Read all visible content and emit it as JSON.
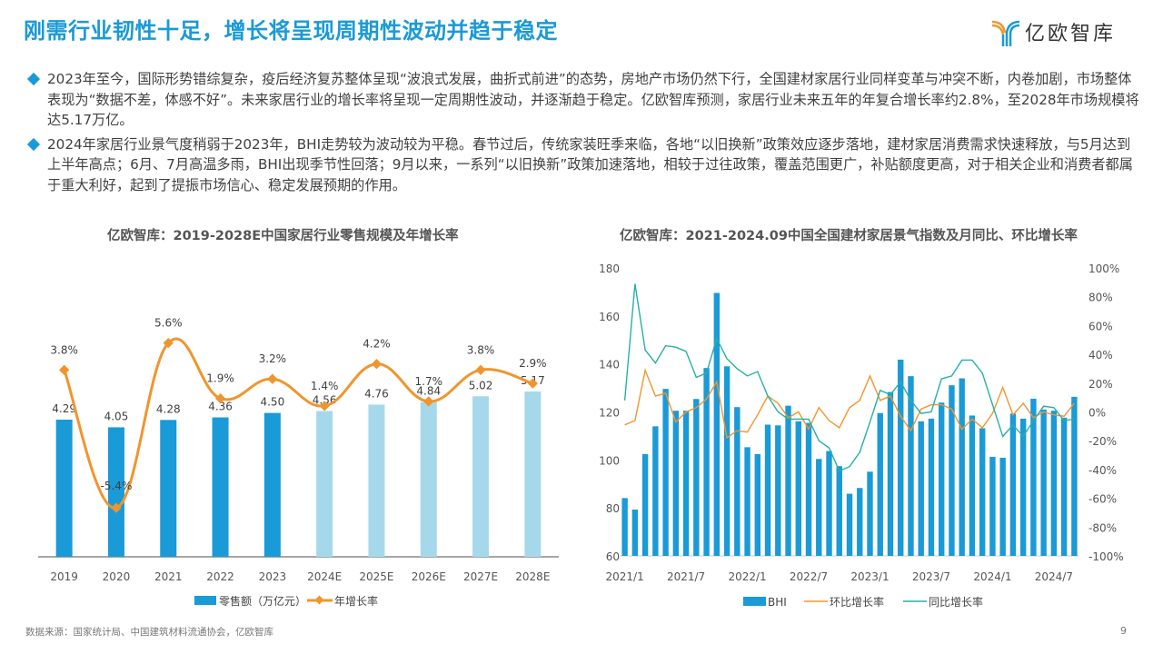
{
  "header": {
    "title": "刚需行业韧性十足，增长将呈现周期性波动并趋于稳定",
    "logo_text": "亿欧智库",
    "logo_colors": {
      "orange": "#f0952e",
      "blue": "#1a9ad6"
    }
  },
  "bullets": [
    {
      "text": "2023年至今，国际形势错综复杂，疫后经济复苏整体呈现“波浪式发展，曲折式前进”的态势，房地产市场仍然下行，全国建材家居行业同样变革与冲突不断，内卷加剧，市场整体表现为“数据不差，体感不好”。未来家居行业的增长率将呈现一定周期性波动，并逐渐趋于稳定。亿欧智库预测，家居行业未来五年的年复合增长率约2.8%，至2028年市场规模将达5.17万亿。"
    },
    {
      "text": "2024年家居行业景气度稍弱于2023年，BHI走势较为波动较为平稳。春节过后，传统家装旺季来临，各地“以旧换新”政策效应逐步落地，建材家居消费需求快速释放，与5月达到上半年高点；6月、7月高温多雨，BHI出现季节性回落；9月以来，一系列“以旧换新”政策加速落地，相较于过往政策，覆盖范围更广，补贴额度更高，对于相关企业和消费者都属于重大利好，起到了提振市场信心、稳定发展预期的作用。"
    }
  ],
  "colors": {
    "accent": "#1a9ad6",
    "bar_actual": "#1a9ad6",
    "bar_estimate": "#a6d8ec",
    "growth_line": "#f0952e",
    "mom_line": "#f0952e",
    "yoy_line": "#26b0a6"
  },
  "chart_data": [
    {
      "type": "bar",
      "title": "亿欧智库：2019-2028E中国家居行业零售规模及年增长率",
      "categories": [
        "2019",
        "2020",
        "2021",
        "2022",
        "2023",
        "2024E",
        "2025E",
        "2026E",
        "2027E",
        "2028E"
      ],
      "series": [
        {
          "name": "零售额（万亿元）",
          "kind": "bar",
          "values": [
            4.29,
            4.05,
            4.28,
            4.36,
            4.5,
            4.56,
            4.76,
            4.84,
            5.02,
            5.17
          ],
          "labels": [
            "4.29",
            "4.05",
            "4.28",
            "4.36",
            "4.50",
            "4.56",
            "4.76",
            "4.84",
            "5.02",
            "5.17"
          ],
          "estimate_from_index": 5
        },
        {
          "name": "年增长率",
          "kind": "line",
          "values": [
            3.8,
            -5.4,
            5.6,
            1.9,
            3.2,
            1.4,
            4.2,
            1.7,
            3.8,
            2.9
          ],
          "labels": [
            "3.8%",
            "-5.4%",
            "5.6%",
            "1.9%",
            "3.2%",
            "1.4%",
            "4.2%",
            "1.7%",
            "3.8%",
            "2.9%"
          ]
        }
      ],
      "legend": [
        "零售额（万亿元）",
        "年增长率"
      ],
      "legend_position": "bottom",
      "grid": false
    },
    {
      "type": "bar",
      "title": "亿欧智库：2021-2024.09中国全国建材家居景气指数及月同比、环比增长率",
      "x": [
        "2021/1",
        "2021/2",
        "2021/3",
        "2021/4",
        "2021/5",
        "2021/6",
        "2021/7",
        "2021/8",
        "2021/9",
        "2021/10",
        "2021/11",
        "2021/12",
        "2022/1",
        "2022/2",
        "2022/3",
        "2022/4",
        "2022/5",
        "2022/6",
        "2022/7",
        "2022/8",
        "2022/9",
        "2022/10",
        "2022/11",
        "2022/12",
        "2023/1",
        "2023/2",
        "2023/3",
        "2023/4",
        "2023/5",
        "2023/6",
        "2023/7",
        "2023/8",
        "2023/9",
        "2023/10",
        "2023/11",
        "2023/12",
        "2024/1",
        "2024/2",
        "2024/3",
        "2024/4",
        "2024/5",
        "2024/6",
        "2024/7",
        "2024/8",
        "2024/9"
      ],
      "x_tick_labels": [
        "2021/1",
        "2021/7",
        "2022/1",
        "2022/7",
        "2023/1",
        "2023/7",
        "2024/1",
        "2024/7"
      ],
      "y_left": {
        "range": [
          60,
          180
        ],
        "ticks": [
          "60",
          "80",
          "100",
          "120",
          "140",
          "160",
          "180"
        ]
      },
      "y_right": {
        "range": [
          -100,
          100
        ],
        "ticks": [
          "-100%",
          "-80%",
          "-60%",
          "-40%",
          "-20%",
          "0%",
          "20%",
          "40%",
          "60%",
          "80%",
          "100%"
        ]
      },
      "series": [
        {
          "name": "BHI",
          "kind": "bar",
          "axis": "left",
          "values": [
            84.1,
            79.3,
            102.4,
            114.0,
            129.6,
            120.5,
            120.5,
            125.4,
            138.3,
            169.6,
            139.0,
            122.0,
            105.3,
            102.4,
            114.7,
            114.4,
            122.6,
            116.1,
            115.4,
            100.4,
            103.7,
            97.4,
            85.9,
            88.3,
            95.1,
            119.5,
            128.3,
            141.8,
            134.9,
            116.1,
            117.2,
            123.9,
            131.1,
            134.0,
            118.5,
            113.2,
            101.3,
            100.9,
            119.3,
            117.2,
            125.5,
            121.0,
            120.5,
            117.6,
            126.3
          ]
        },
        {
          "name": "环比增长率",
          "kind": "line",
          "axis": "right",
          "values": [
            -9,
            -6,
            29,
            11,
            13,
            -7,
            0,
            3,
            9,
            21,
            -18,
            -13,
            -14,
            -2,
            11,
            6,
            -4,
            0,
            -12,
            3,
            -6,
            -11,
            3,
            8,
            25,
            8,
            11,
            -3,
            -13,
            2,
            5,
            5,
            2,
            -12,
            -5,
            -11,
            -1,
            17,
            -2,
            6,
            -4,
            0,
            -2,
            -3,
            6
          ]
        },
        {
          "name": "同比增长率",
          "kind": "line",
          "axis": "right",
          "values": [
            8,
            89,
            43,
            34,
            46,
            45,
            42,
            24,
            27,
            51,
            37,
            30,
            25,
            28,
            11,
            0,
            -5,
            -5,
            -5,
            -20,
            -25,
            -41,
            -38,
            -28,
            -7,
            15,
            12,
            21,
            8,
            -1,
            0,
            23,
            25,
            36,
            36,
            27,
            5,
            -17,
            -9,
            -17,
            -6,
            4,
            3,
            -6,
            -5
          ]
        }
      ],
      "legend": [
        "BHI",
        "环比增长率",
        "同比增长率"
      ],
      "legend_position": "bottom",
      "grid": false
    }
  ],
  "footer": {
    "source": "数据来源：国家统计局、中国建筑材料流通协会，亿欧智库",
    "page_number": "9"
  }
}
